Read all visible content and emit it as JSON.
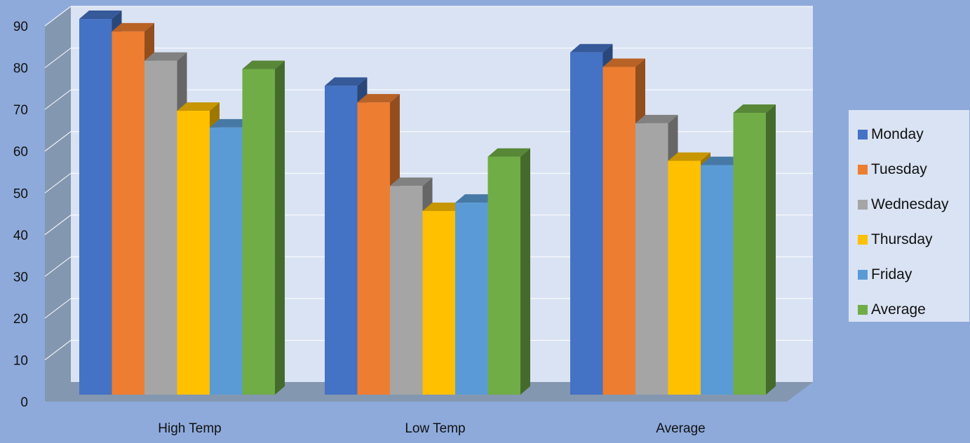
{
  "chart_data": {
    "type": "bar",
    "categories": [
      "High Temp",
      "Low Temp",
      "Average"
    ],
    "series": [
      {
        "name": "Monday",
        "color": "#4472c4",
        "values": [
          90,
          74,
          82
        ]
      },
      {
        "name": "Tuesday",
        "color": "#ed7d31",
        "values": [
          87,
          70,
          78.5
        ]
      },
      {
        "name": "Wednesday",
        "color": "#a5a5a5",
        "values": [
          80,
          50,
          65
        ]
      },
      {
        "name": "Thursday",
        "color": "#ffc000",
        "values": [
          68,
          44,
          56
        ]
      },
      {
        "name": "Friday",
        "color": "#5b9bd5",
        "values": [
          64,
          46,
          55
        ]
      },
      {
        "name": "Average",
        "color": "#70ad47",
        "values": [
          78,
          57,
          67.5
        ]
      }
    ],
    "ylim": [
      0,
      90
    ],
    "y_ticks": [
      "0",
      "10",
      "20",
      "30",
      "40",
      "50",
      "60",
      "70",
      "80",
      "90"
    ],
    "xlabel": "",
    "ylabel": "",
    "title": "",
    "grid": true,
    "legend_position": "right",
    "style": "3d-column",
    "colors": {
      "background": "#8eaadb",
      "back_wall": "#dae3f3",
      "side_wall": "#8497b0",
      "floor": "#8497b0",
      "grid": "#ffffff",
      "legend_background": "#dae3f3"
    }
  }
}
